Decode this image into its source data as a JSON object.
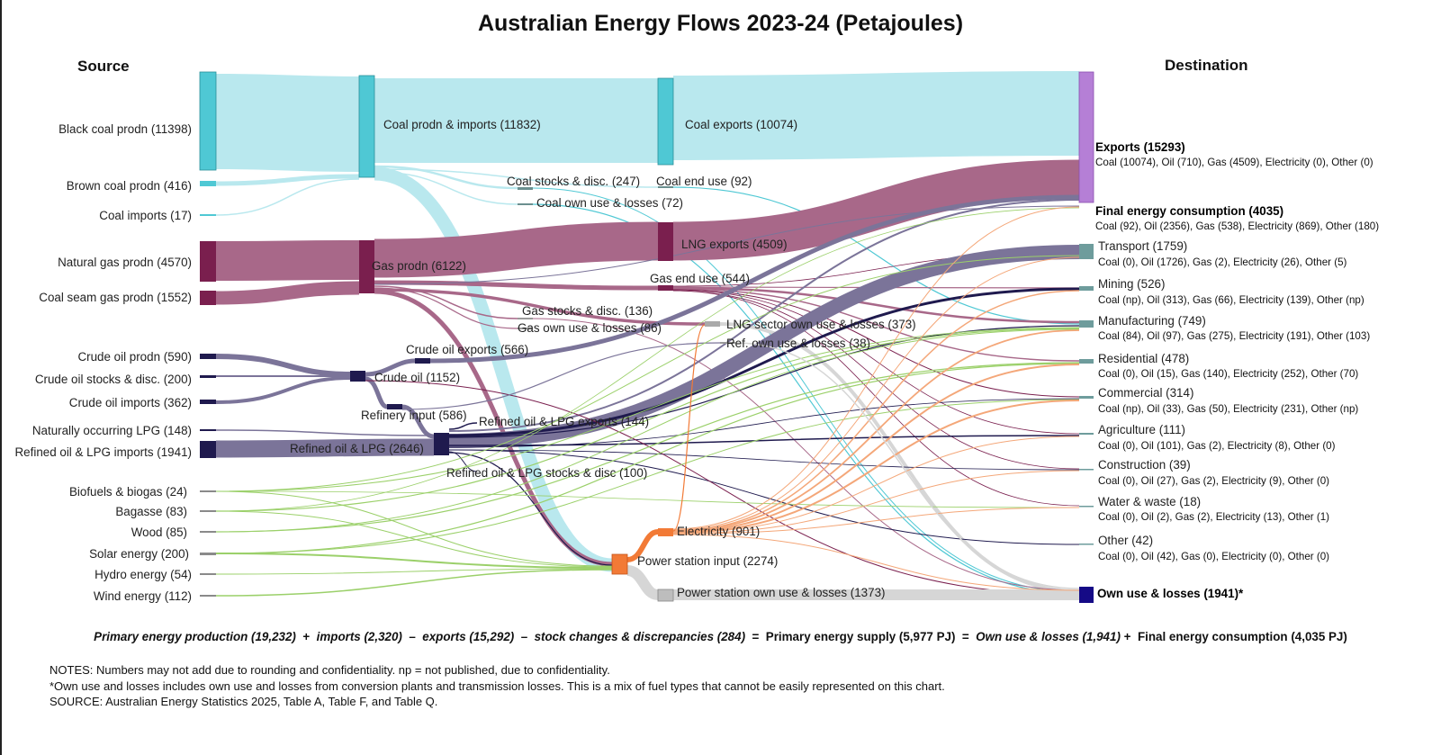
{
  "title": "Australian Energy Flows 2023-24 (Petajoules)",
  "source_header": "Source",
  "destination_header": "Destination",
  "colors": {
    "coal": "#4fc8d4",
    "coal_flow": "#b9e8ee",
    "gas": "#7a1f4e",
    "gas_flow": "#a86889",
    "oil": "#1f1a4e",
    "oil_flow": "#7b7499",
    "renewable_flow": "#9bd06a",
    "electricity": "#f27a36",
    "electricity_flow": "#f4a779",
    "loss_flow": "#d6d6d6",
    "exports_node": "#b57fd6",
    "sector_node": "#6e9c9c",
    "own_use_node": "#150a86"
  },
  "source_labels": {
    "black_coal": "Black coal prodn (11398)",
    "brown_coal": "Brown coal prodn (416)",
    "coal_imports": "Coal imports (17)",
    "natural_gas": "Natural gas prodn (4570)",
    "csg": "Coal seam gas prodn (1552)",
    "crude_prodn": "Crude oil prodn (590)",
    "crude_stocks": "Crude oil stocks & disc. (200)",
    "crude_imports": "Crude oil imports (362)",
    "lpg_natural": "Naturally occurring LPG (148)",
    "refined_imports": "Refined oil & LPG imports (1941)",
    "biofuels": "Biofuels & biogas (24)",
    "bagasse": "Bagasse (83)",
    "wood": "Wood (85)",
    "solar": "Solar energy (200)",
    "hydro": "Hydro energy (54)",
    "wind": "Wind energy (112)"
  },
  "middle_labels": {
    "coal_prodn": "Coal prodn & imports (11832)",
    "coal_exports": "Coal exports (10074)",
    "coal_stocks": "Coal stocks & disc. (247)",
    "coal_end": "Coal end use (92)",
    "coal_own": "Coal own use & losses (72)",
    "lng_exports": "LNG exports (4509)",
    "gas_prodn": "Gas prodn (6122)",
    "gas_end": "Gas end use (544)",
    "gas_stocks": "Gas stocks & disc. (136)",
    "gas_own": "Gas own use & losses (86)",
    "lng_own": "LNG sector own use & losses (373)",
    "ref_own": "Ref. own use & losses (38)",
    "crude_exports": "Crude oil exports (566)",
    "crude": "Crude oil (1152)",
    "refinery_input": "Refinery input (586)",
    "refined_exports": "Refined oil & LPG exports (144)",
    "refined": "Refined oil & LPG (2646)",
    "refined_stocks": "Refined oil & LPG stocks & disc (100)",
    "electricity": "Electricity (901)",
    "power_input": "Power station input (2274)",
    "power_own": "Power station own use & losses (1373)"
  },
  "destinations": {
    "exports": {
      "label": "Exports (15293)",
      "detail": "Coal (10074), Oil (710), Gas (4509), Electricity (0), Other (0)"
    },
    "final": {
      "label": "Final energy consumption (4035)",
      "detail": "Coal (92), Oil (2356), Gas (538), Electricity (869), Other (180)"
    },
    "transport": {
      "label": "Transport (1759)",
      "detail": "Coal (0), Oil (1726), Gas (2), Electricity (26), Other (5)"
    },
    "mining": {
      "label": "Mining (526)",
      "detail": "Coal (np), Oil (313), Gas (66), Electricity (139), Other (np)"
    },
    "manufacturing": {
      "label": "Manufacturing (749)",
      "detail": "Coal (84), Oil (97), Gas (275), Electricity (191), Other (103)"
    },
    "residential": {
      "label": "Residential (478)",
      "detail": "Coal (0), Oil (15), Gas (140), Electricity (252), Other (70)"
    },
    "commercial": {
      "label": "Commercial (314)",
      "detail": "Coal (np), Oil (33), Gas (50), Electricity (231), Other (np)"
    },
    "agriculture": {
      "label": "Agriculture (111)",
      "detail": "Coal (0), Oil (101), Gas (2), Electricity (8), Other (0)"
    },
    "construction": {
      "label": "Construction (39)",
      "detail": "Coal (0), Oil (27), Gas (2), Electricity (9), Other (0)"
    },
    "water": {
      "label": "Water & waste (18)",
      "detail": "Coal (0), Oil (2), Gas (2), Electricity (13), Other (1)"
    },
    "other": {
      "label": "Other (42)",
      "detail": "Coal (0), Oil (42), Gas (0), Electricity (0), Other (0)"
    },
    "own_use": {
      "label": "Own use & losses (1941)*"
    }
  },
  "equation": {
    "p1": "Primary energy production (19,232)",
    "op1": "+",
    "p2": "imports (2,320)",
    "op2": "–",
    "p3": "exports (15,292)",
    "op3": "–",
    "p4": "stock changes & discrepancies (284)",
    "op4": "=",
    "p5": "Primary energy supply (5,977 PJ)",
    "op5": "=",
    "p6": "Own use & losses (1,941)",
    "op6": "+",
    "p7": "Final energy consumption (4,035 PJ)"
  },
  "notes": {
    "line1": "NOTES: Numbers may not add due to rounding and confidentiality. np = not published, due to confidentiality.",
    "line2": "*Own use and losses includes own use and losses from conversion plants and transmission losses. This is a mix of fuel types that cannot be easily represented on this chart.",
    "line3": "SOURCE: Australian Energy Statistics 2025, Table A, Table F, and Table Q."
  }
}
